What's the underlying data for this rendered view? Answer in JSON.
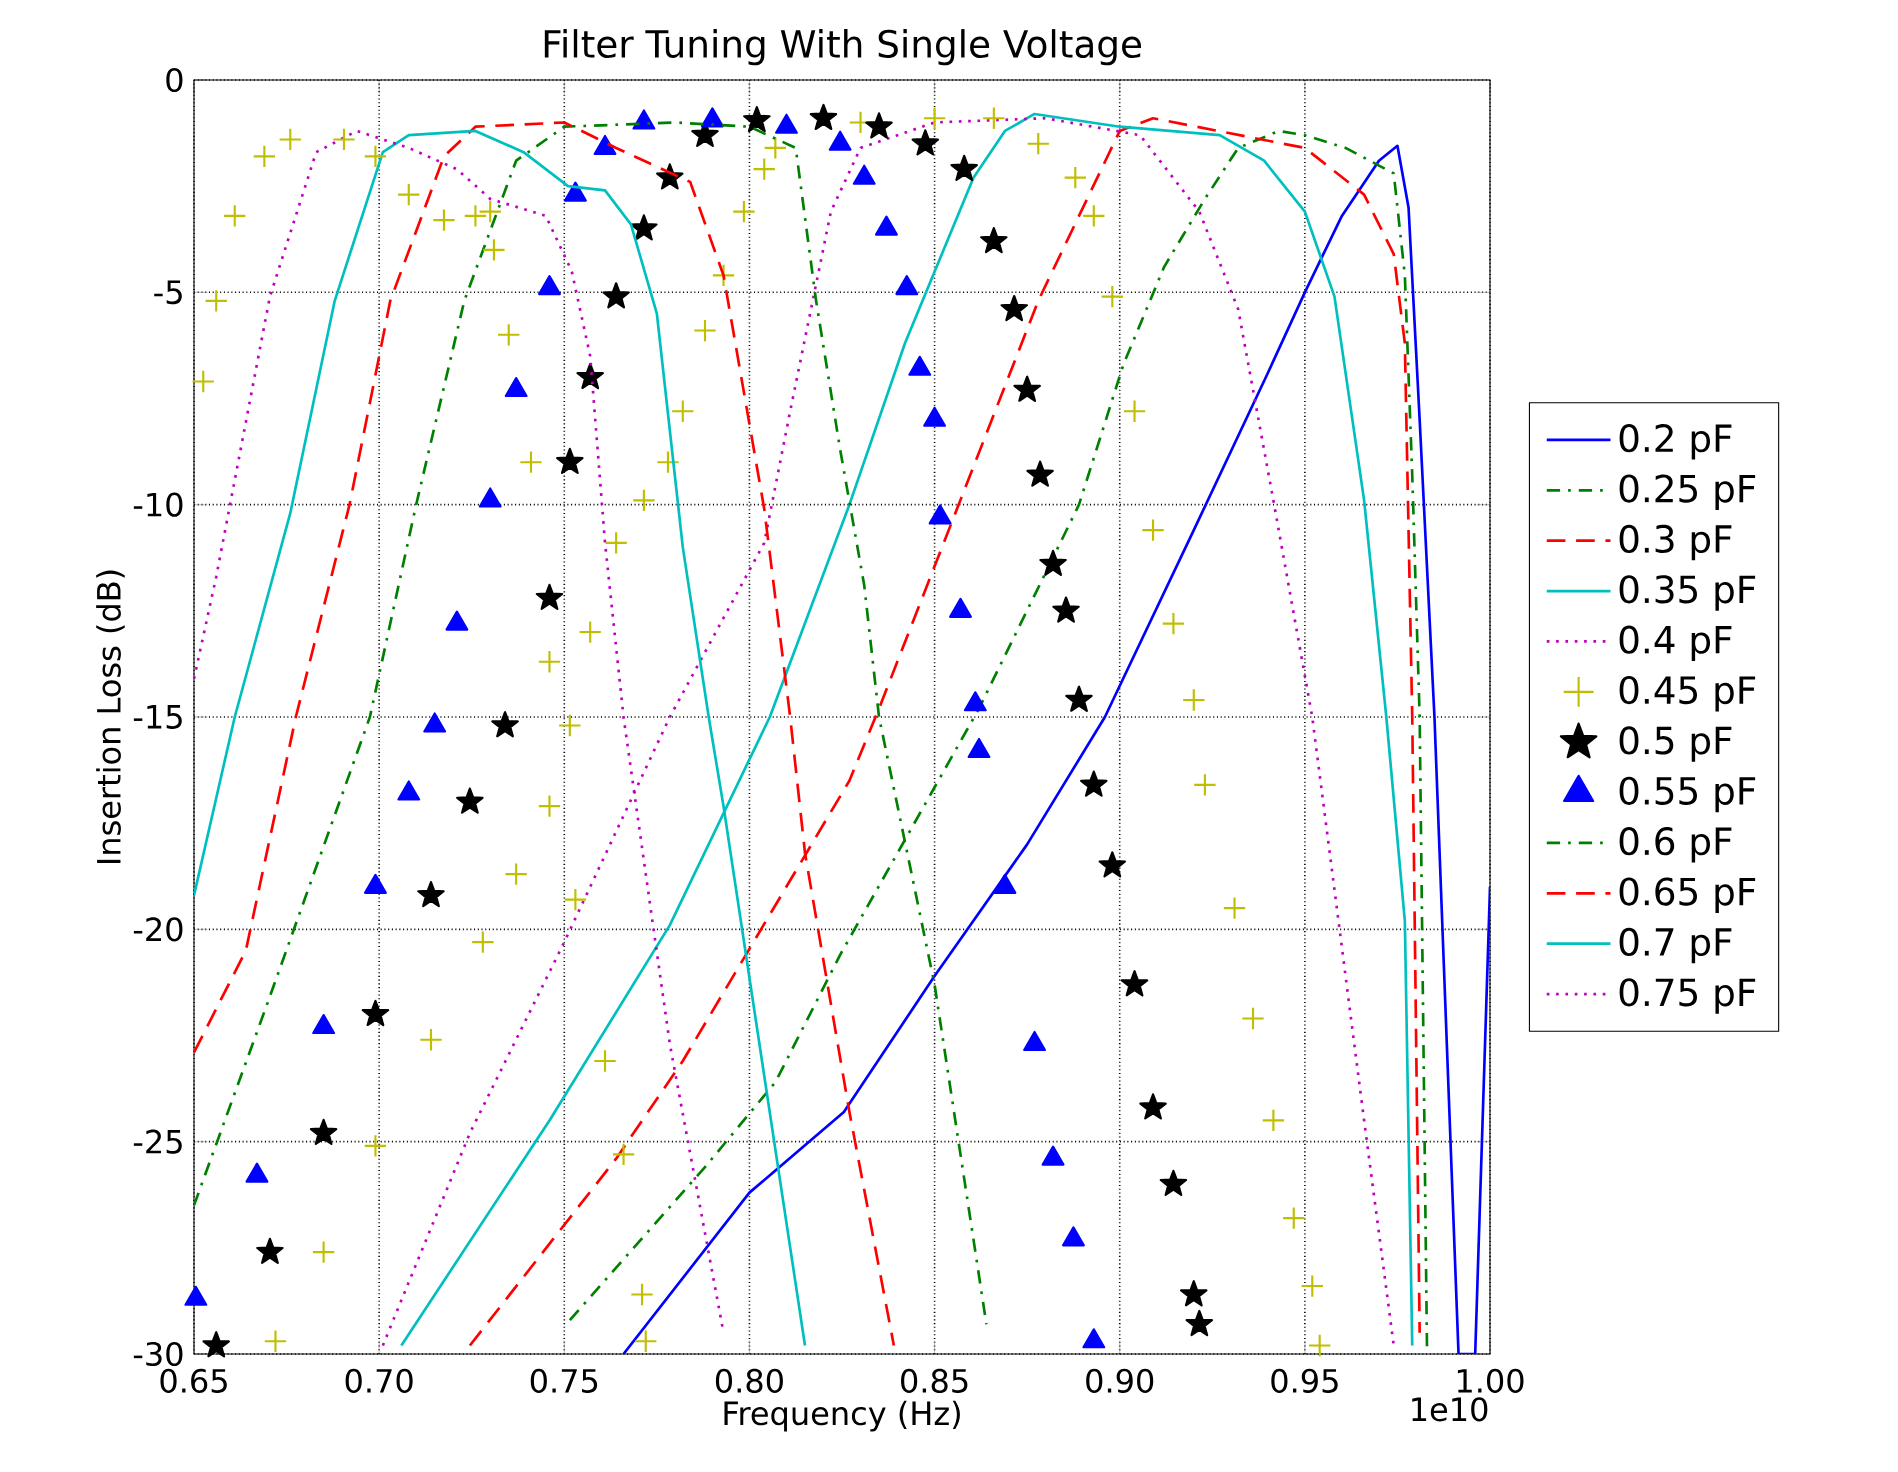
{
  "chart_data": {
    "type": "line",
    "title": "Filter Tuning With Single Voltage",
    "xlabel": "Frequency (Hz)",
    "ylabel": "Insertion Loss (dB)",
    "annotations": [
      "1e10"
    ],
    "xlim": [
      0.65,
      1.0
    ],
    "ylim": [
      -30,
      0
    ],
    "xticks": [
      0.65,
      {
        "value": 0.7,
        "label": "0.70"
      },
      0.75,
      {
        "value": 0.8,
        "label": "0.80"
      },
      0.85,
      {
        "value": 0.9,
        "label": "0.90"
      },
      0.95,
      {
        "value": 1.0,
        "label": "1.00"
      }
    ],
    "yticks": [
      -30,
      -25,
      -20,
      -15,
      -10,
      -5,
      0
    ],
    "grid": true,
    "legend": "right",
    "series": [
      {
        "name": "0.2 pF",
        "color": "#0000ff",
        "line_style": "solid",
        "marker": "none",
        "x": [
          0.766,
          0.8,
          0.8255,
          0.85,
          0.875,
          0.896,
          0.92,
          0.94,
          0.95,
          0.96,
          0.97,
          0.975,
          0.978,
          0.981,
          0.985,
          0.9915,
          0.996,
          1.0
        ],
        "values": [
          -30,
          -26.2,
          -24.3,
          -21.1,
          -18,
          -15,
          -10.6,
          -6.9,
          -5,
          -3.2,
          -1.9,
          -1.55,
          -3,
          -8,
          -15,
          -30,
          -30,
          -19
        ]
      },
      {
        "name": "0.25 pF",
        "color": "#008000",
        "line_style": "dashdot",
        "marker": "none",
        "x": [
          0.7515,
          0.788,
          0.807,
          0.8245,
          0.862,
          0.889,
          0.901,
          0.912,
          0.923,
          0.932,
          0.943,
          0.95,
          0.961,
          0.974,
          0.977,
          0.979,
          0.981,
          0.983
        ],
        "values": [
          -29.2,
          -25.6,
          -23.6,
          -20.6,
          -14.8,
          -10,
          -6.7,
          -4.4,
          -2.8,
          -1.6,
          -1.2,
          -1.3,
          -1.6,
          -2.2,
          -4.6,
          -9.3,
          -15,
          -30
        ]
      },
      {
        "name": "0.3 pF",
        "color": "#ff0000",
        "line_style": "dashed",
        "marker": "none",
        "x": [
          0.7245,
          0.764,
          0.782,
          0.827,
          0.835,
          0.878,
          0.9,
          0.909,
          0.95,
          0.966,
          0.974,
          0.977,
          0.979,
          0.981
        ],
        "values": [
          -29.8,
          -25.4,
          -23.1,
          -16.5,
          -14.8,
          -5.2,
          -1.2,
          -0.9,
          -1.6,
          -2.7,
          -4.1,
          -6.2,
          -15,
          -29.5
        ]
      },
      {
        "name": "0.35 pF",
        "color": "#00bfbf",
        "line_style": "solid",
        "marker": "none",
        "x": [
          0.706,
          0.746,
          0.7785,
          0.8055,
          0.827,
          0.842,
          0.8605,
          0.869,
          0.877,
          0.9,
          0.927,
          0.939,
          0.95,
          0.958,
          0.966,
          0.972,
          0.977,
          0.979
        ],
        "values": [
          -29.8,
          -24.5,
          -19.9,
          -15,
          -10,
          -6.2,
          -2.3,
          -1.2,
          -0.8,
          -1.1,
          -1.3,
          -1.9,
          -3.1,
          -5.1,
          -9.9,
          -15,
          -19.8,
          -29.8
        ]
      },
      {
        "name": "0.4 pF",
        "color": "#bf00bf",
        "line_style": "dotted",
        "marker": "none",
        "x": [
          0.701,
          0.7245,
          0.75,
          0.7785,
          0.804,
          0.811,
          0.822,
          0.83,
          0.85,
          0.88,
          0.9055,
          0.9215,
          0.932,
          0.9415,
          0.952,
          0.966,
          0.974
        ],
        "values": [
          -29.8,
          -24.8,
          -20.3,
          -15,
          -10.9,
          -7.8,
          -3.1,
          -1.6,
          -1.0,
          -0.9,
          -1.3,
          -3.1,
          -5.4,
          -9.9,
          -15,
          -24.5,
          -29.8
        ]
      },
      {
        "name": "0.45 pF",
        "type": "scatter",
        "color": "#bfbf00",
        "marker": "cross",
        "x": [
          0.672,
          0.685,
          0.699,
          0.714,
          0.728,
          0.737,
          0.746,
          0.7515,
          0.757,
          0.764,
          0.7715,
          0.778,
          0.782,
          0.788,
          0.793,
          0.7985,
          0.804,
          0.807,
          0.83,
          0.85,
          0.866,
          0.878,
          0.888,
          0.893,
          0.898,
          0.904,
          0.909,
          0.9145,
          0.92,
          0.923,
          0.931,
          0.936,
          0.9415,
          0.947,
          0.952,
          0.954
        ],
        "values": [
          -29.7,
          -27.6,
          -25.1,
          -22.6,
          -20.3,
          -18.7,
          -17.1,
          -15.2,
          -13,
          -10.9,
          -9.9,
          -9,
          -7.8,
          -5.9,
          -4.6,
          -3.1,
          -2.1,
          -1.6,
          -1.0,
          -0.9,
          -0.9,
          -1.5,
          -2.3,
          -3.2,
          -5.1,
          -7.8,
          -10.6,
          -12.8,
          -14.6,
          -16.6,
          -19.5,
          -22.1,
          -24.5,
          -26.8,
          -28.4,
          -29.8
        ]
      },
      {
        "name": "0.5 pF",
        "type": "scatter",
        "color": "#000000",
        "marker": "star",
        "x": [
          0.656,
          0.6705,
          0.685,
          0.699,
          0.714,
          0.7245,
          0.734,
          0.746,
          0.7515,
          0.757,
          0.764,
          0.7715,
          0.7785,
          0.788,
          0.802,
          0.82,
          0.835,
          0.8475,
          0.858,
          0.866,
          0.8715,
          0.875,
          0.8785,
          0.882,
          0.8855,
          0.889,
          0.893,
          0.898,
          0.904,
          0.909,
          0.9145,
          0.92,
          0.9215
        ],
        "values": [
          -29.8,
          -27.6,
          -24.8,
          -22,
          -19.2,
          -17,
          -15.2,
          -12.2,
          -9,
          -7,
          -5.1,
          -3.5,
          -2.3,
          -1.3,
          -0.95,
          -0.9,
          -1.1,
          -1.5,
          -2.1,
          -3.8,
          -5.4,
          -7.3,
          -9.3,
          -11.4,
          -12.5,
          -14.6,
          -16.6,
          -18.5,
          -21.3,
          -24.2,
          -26,
          -28.6,
          -29.3
        ]
      },
      {
        "name": "0.55 pF",
        "type": "scatter",
        "color": "#0000ff",
        "marker": "triangle",
        "x": [
          0.6505,
          0.667,
          0.685,
          0.699,
          0.708,
          0.715,
          0.721,
          0.73,
          0.737,
          0.746,
          0.753,
          0.761,
          0.7715,
          0.79,
          0.81,
          0.8245,
          0.831,
          0.837,
          0.8425,
          0.846,
          0.85,
          0.8515,
          0.857,
          0.861,
          0.862,
          0.869,
          0.877,
          0.882,
          0.8875,
          0.893
        ],
        "values": [
          -28.7,
          -25.8,
          -22.3,
          -19,
          -16.8,
          -15.2,
          -12.8,
          -9.9,
          -7.3,
          -4.9,
          -2.7,
          -1.6,
          -1.0,
          -0.95,
          -1.1,
          -1.5,
          -2.3,
          -3.5,
          -4.9,
          -6.8,
          -8,
          -10.3,
          -12.5,
          -14.7,
          -15.8,
          -19,
          -22.7,
          -25.4,
          -27.3,
          -29.7
        ]
      },
      {
        "name": "0.6 pF",
        "color": "#008000",
        "line_style": "dashdot",
        "marker": "none",
        "x": [
          0.65,
          0.67,
          0.6975,
          0.71,
          0.723,
          0.737,
          0.75,
          0.78,
          0.8,
          0.8125,
          0.818,
          0.8245,
          0.831,
          0.835,
          0.85,
          0.864
        ],
        "values": [
          -26.5,
          -21.7,
          -15,
          -10,
          -5.2,
          -1.9,
          -1.1,
          -1.0,
          -1.1,
          -1.6,
          -5.2,
          -8.7,
          -11.9,
          -15,
          -21.3,
          -29.3
        ]
      },
      {
        "name": "0.65 pF",
        "color": "#ff0000",
        "line_style": "dashed",
        "marker": "none",
        "x": [
          0.65,
          0.664,
          0.6775,
          0.692,
          0.703,
          0.7175,
          0.726,
          0.75,
          0.764,
          0.784,
          0.793,
          0.804,
          0.811,
          0.815,
          0.827,
          0.839
        ],
        "values": [
          -22.9,
          -20.5,
          -15,
          -10,
          -5.2,
          -1.8,
          -1.1,
          -1.0,
          -1.6,
          -2.4,
          -4.6,
          -10.1,
          -15,
          -18.2,
          -24.3,
          -29.8
        ]
      },
      {
        "name": "0.7 pF",
        "color": "#00bfbf",
        "line_style": "solid",
        "marker": "none",
        "x": [
          0.65,
          0.661,
          0.676,
          0.688,
          0.701,
          0.708,
          0.726,
          0.739,
          0.751,
          0.761,
          0.768,
          0.775,
          0.782,
          0.789,
          0.793,
          0.815
        ],
        "values": [
          -19.2,
          -15,
          -10.2,
          -5.2,
          -1.7,
          -1.3,
          -1.2,
          -1.7,
          -2.5,
          -2.6,
          -3.4,
          -5.5,
          -11,
          -15,
          -17.1,
          -29.8
        ]
      },
      {
        "name": "0.75 pF",
        "color": "#bf00bf",
        "line_style": "dotted",
        "marker": "none",
        "x": [
          0.65,
          0.656,
          0.6705,
          0.683,
          0.694,
          0.708,
          0.721,
          0.73,
          0.745,
          0.752,
          0.757,
          0.761,
          0.766,
          0.7785,
          0.793
        ],
        "values": [
          -14.1,
          -11.7,
          -5.1,
          -1.7,
          -1.2,
          -1.6,
          -2.1,
          -2.8,
          -3.2,
          -4.5,
          -6.5,
          -10.9,
          -15,
          -22.7,
          -29.5
        ]
      },
      {
        "type": "scatter",
        "color": "#bfbf00",
        "marker": "cross",
        "x": [
          0.6525,
          0.656,
          0.661,
          0.669,
          0.676,
          0.6905,
          0.699,
          0.708,
          0.7175,
          0.726,
          0.73,
          0.731,
          0.735,
          0.741,
          0.746,
          0.753,
          0.761,
          0.766,
          0.771,
          0.772
        ],
        "values": [
          -7.1,
          -5.2,
          -3.2,
          -1.8,
          -1.4,
          -1.4,
          -1.8,
          -2.7,
          -3.3,
          -3.2,
          -3.1,
          -4,
          -6,
          -9,
          -13.7,
          -19.3,
          -23.1,
          -25.3,
          -28.6,
          -29.7
        ]
      }
    ]
  }
}
